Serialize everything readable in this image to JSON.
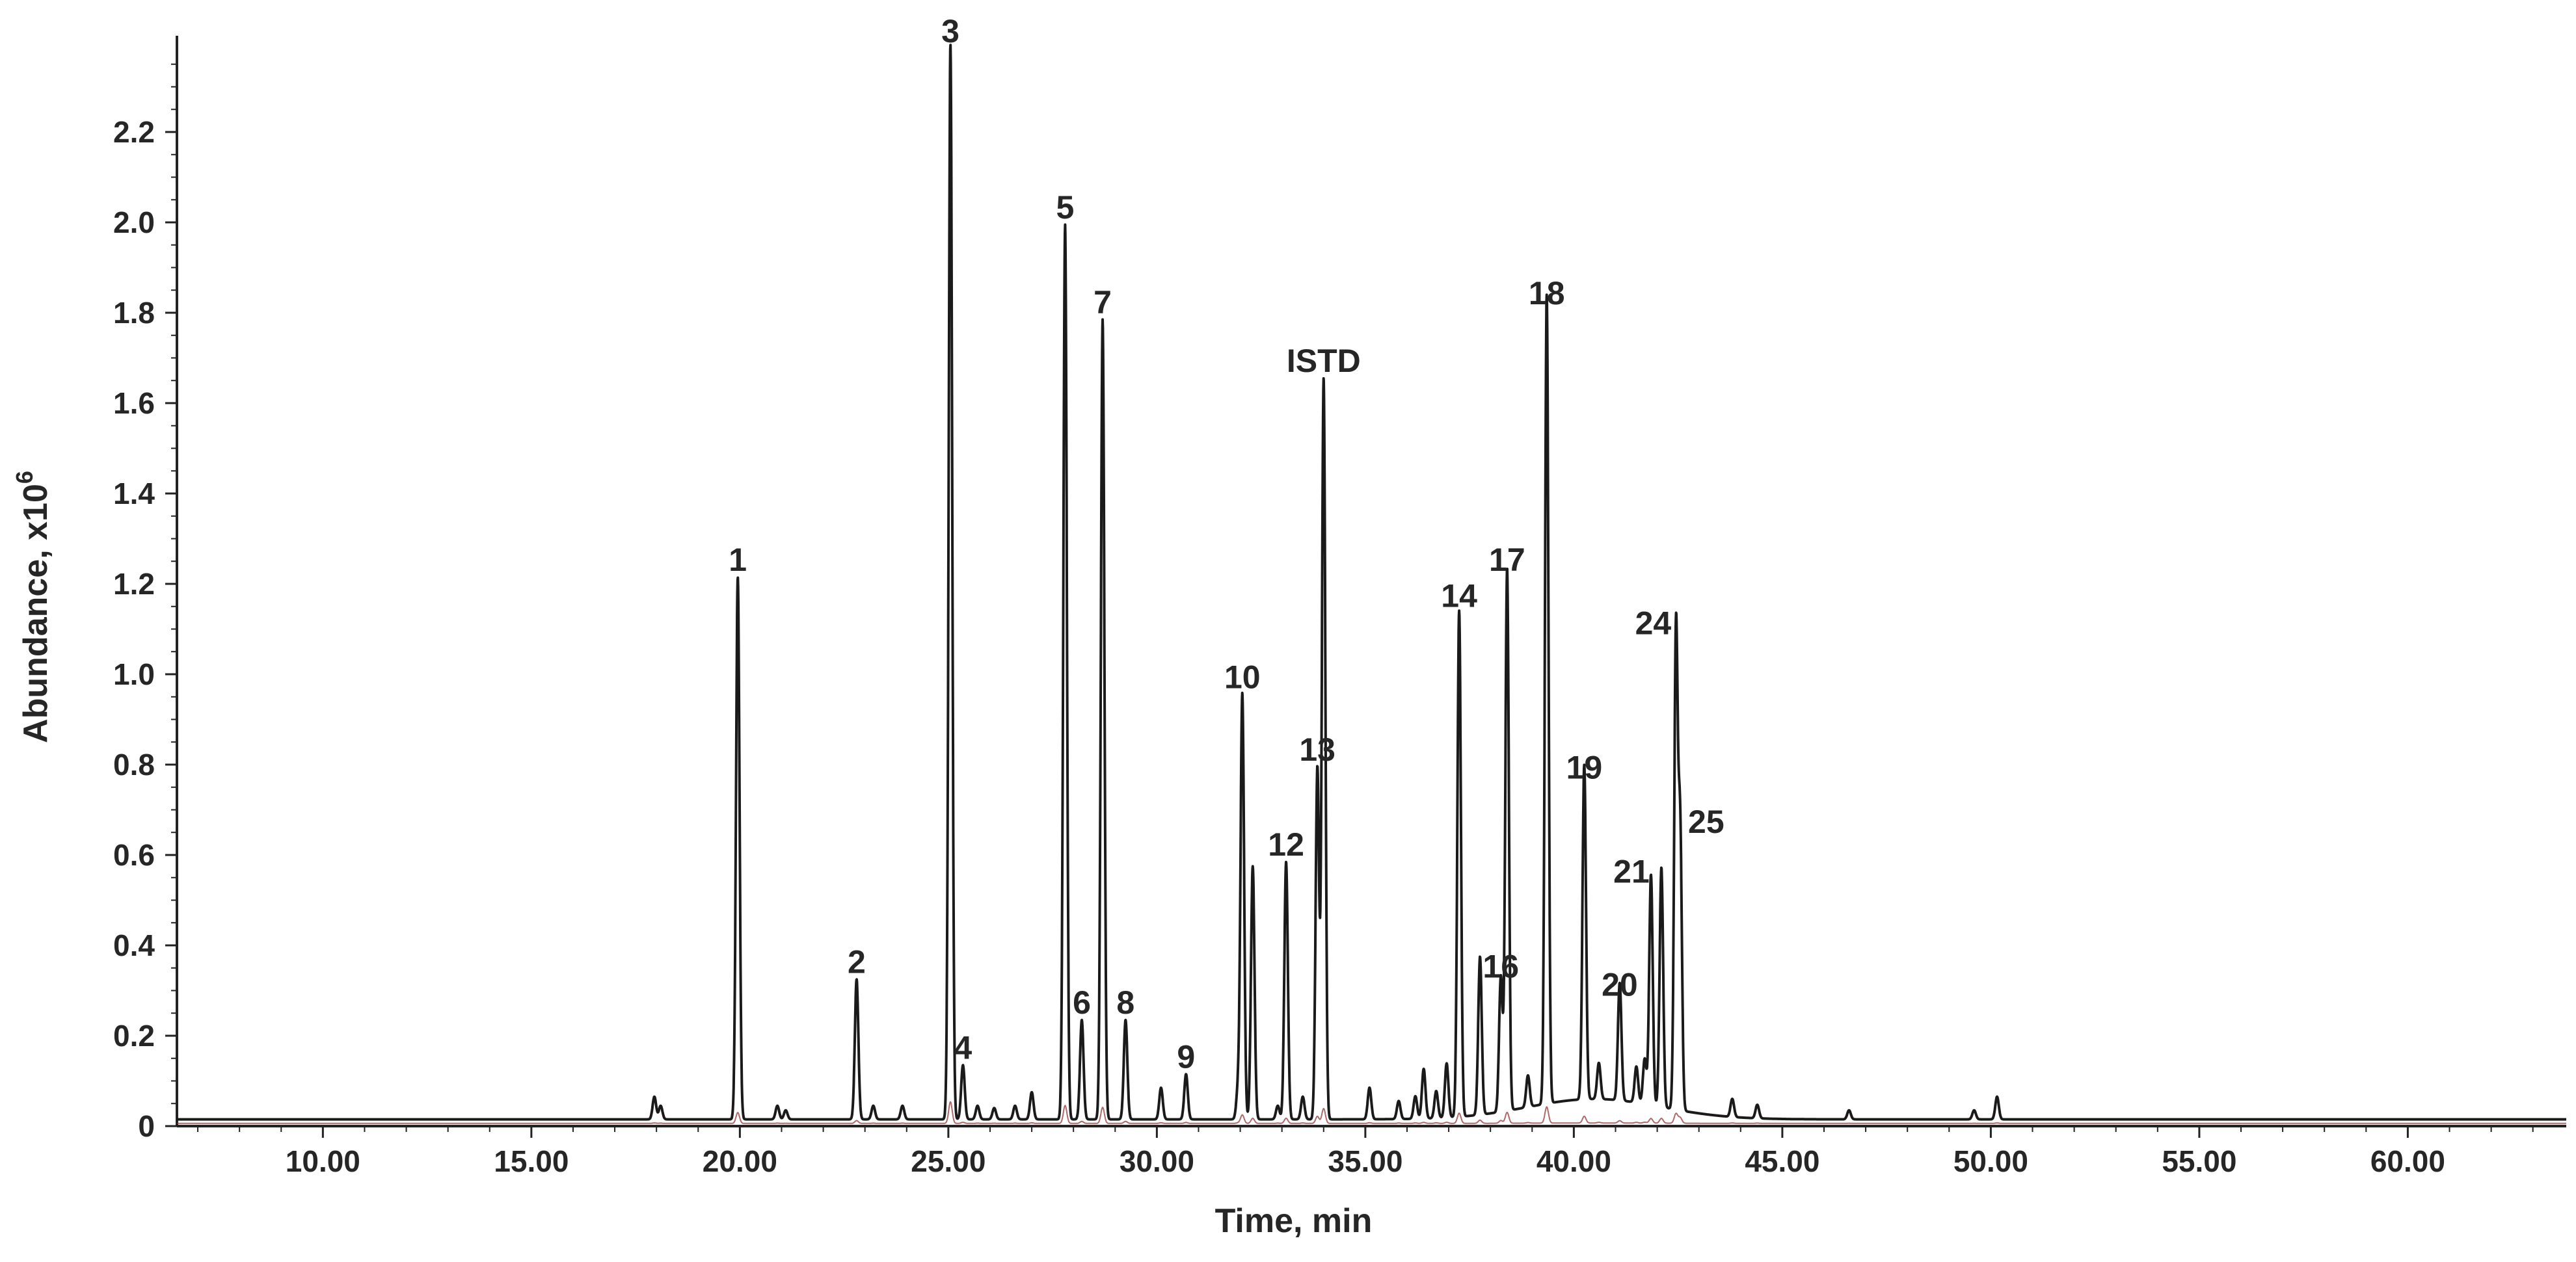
{
  "chart_data": {
    "type": "line",
    "title": "",
    "xlabel": "Time, min",
    "ylabel": "Abundance, x10",
    "ylabel_superscript": "6",
    "xlim": [
      6.5,
      63.8
    ],
    "ylim": [
      0,
      2.4
    ],
    "grid": false,
    "x_ticks": [
      "10.00",
      "15.00",
      "20.00",
      "25.00",
      "30.00",
      "35.00",
      "40.00",
      "45.00",
      "50.00",
      "55.00",
      "60.00"
    ],
    "x_tick_values": [
      10,
      15,
      20,
      25,
      30,
      35,
      40,
      45,
      50,
      55,
      60
    ],
    "y_ticks": [
      "0",
      "0.2",
      "0.4",
      "0.6",
      "0.8",
      "1.0",
      "1.2",
      "1.4",
      "1.6",
      "1.8",
      "2.0",
      "2.2"
    ],
    "y_tick_values": [
      0,
      0.2,
      0.4,
      0.6,
      0.8,
      1.0,
      1.2,
      1.4,
      1.6,
      1.8,
      2.0,
      2.2
    ],
    "colors": {
      "main_trace": "#1a1a1a",
      "secondary_trace": "#8b2a2a",
      "axis": "#222222",
      "text": "#262626"
    },
    "baseline": 0.015,
    "peaks": [
      {
        "x": 17.95,
        "y": 0.05
      },
      {
        "x": 18.1,
        "y": 0.03
      },
      {
        "x": 19.95,
        "y": 1.2,
        "label": "1"
      },
      {
        "x": 20.9,
        "y": 0.03
      },
      {
        "x": 21.1,
        "y": 0.02
      },
      {
        "x": 22.8,
        "y": 0.31,
        "label": "2"
      },
      {
        "x": 23.2,
        "y": 0.03
      },
      {
        "x": 23.9,
        "y": 0.03
      },
      {
        "x": 25.05,
        "y": 2.38,
        "label": "3"
      },
      {
        "x": 25.35,
        "y": 0.12,
        "label": "4"
      },
      {
        "x": 25.7,
        "y": 0.03
      },
      {
        "x": 26.1,
        "y": 0.025
      },
      {
        "x": 26.6,
        "y": 0.03
      },
      {
        "x": 27.0,
        "y": 0.06
      },
      {
        "x": 27.8,
        "y": 1.98,
        "label": "5"
      },
      {
        "x": 28.2,
        "y": 0.22,
        "label": "6"
      },
      {
        "x": 28.7,
        "y": 1.77,
        "label": "7"
      },
      {
        "x": 29.25,
        "y": 0.22,
        "label": "8"
      },
      {
        "x": 30.1,
        "y": 0.07
      },
      {
        "x": 30.7,
        "y": 0.1,
        "label": "9"
      },
      {
        "x": 31.95,
        "y": 0.07
      },
      {
        "x": 32.05,
        "y": 0.94,
        "label": "10"
      },
      {
        "x": 32.3,
        "y": 0.56
      },
      {
        "x": 32.9,
        "y": 0.03
      },
      {
        "x": 33.1,
        "y": 0.57,
        "label": "12"
      },
      {
        "x": 33.5,
        "y": 0.05
      },
      {
        "x": 33.85,
        "y": 0.78,
        "label": "13"
      },
      {
        "x": 34.0,
        "y": 1.64,
        "label": "ISTD"
      },
      {
        "x": 35.1,
        "y": 0.07
      },
      {
        "x": 35.8,
        "y": 0.04
      },
      {
        "x": 36.2,
        "y": 0.05
      },
      {
        "x": 36.4,
        "y": 0.11
      },
      {
        "x": 36.7,
        "y": 0.06
      },
      {
        "x": 36.95,
        "y": 0.12
      },
      {
        "x": 37.25,
        "y": 1.12,
        "label": "14"
      },
      {
        "x": 37.75,
        "y": 0.35
      },
      {
        "x": 38.25,
        "y": 0.3,
        "label": "16"
      },
      {
        "x": 38.4,
        "y": 1.2,
        "label": "17"
      },
      {
        "x": 38.9,
        "y": 0.07
      },
      {
        "x": 39.35,
        "y": 1.79,
        "label": "18"
      },
      {
        "x": 40.25,
        "y": 0.74,
        "label": "19"
      },
      {
        "x": 40.6,
        "y": 0.08
      },
      {
        "x": 41.1,
        "y": 0.26,
        "label": "20"
      },
      {
        "x": 41.5,
        "y": 0.08
      },
      {
        "x": 41.7,
        "y": 0.1
      },
      {
        "x": 41.85,
        "y": 0.51,
        "label": "21"
      },
      {
        "x": 42.1,
        "y": 0.53
      },
      {
        "x": 42.45,
        "y": 1.06,
        "label": "24"
      },
      {
        "x": 42.55,
        "y": 0.62,
        "label": "25"
      },
      {
        "x": 43.8,
        "y": 0.04
      },
      {
        "x": 44.4,
        "y": 0.03
      },
      {
        "x": 46.6,
        "y": 0.02
      },
      {
        "x": 49.6,
        "y": 0.02
      },
      {
        "x": 50.15,
        "y": 0.05
      }
    ],
    "hump": {
      "center": 40.5,
      "width": 1.6,
      "height": 0.045
    }
  }
}
